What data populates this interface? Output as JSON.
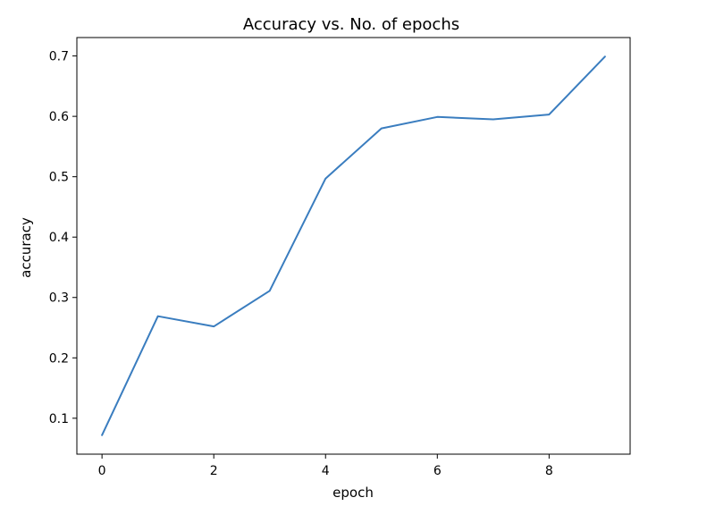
{
  "chart_data": {
    "type": "line",
    "title": "Accuracy vs. No. of epochs",
    "xlabel": "epoch",
    "ylabel": "accuracy",
    "x": [
      0,
      1,
      2,
      3,
      4,
      5,
      6,
      7,
      8,
      9
    ],
    "series": [
      {
        "values": [
          0.072,
          0.269,
          0.252,
          0.311,
          0.497,
          0.58,
          0.599,
          0.595,
          0.603,
          0.699
        ]
      }
    ],
    "xlim": [
      -0.45,
      9.45
    ],
    "ylim": [
      0.0405,
      0.7305
    ],
    "xticks": [
      0,
      2,
      4,
      6,
      8
    ],
    "xtick_labels": [
      "0",
      "2",
      "4",
      "6",
      "8"
    ],
    "yticks": [
      0.1,
      0.2,
      0.3,
      0.4,
      0.5,
      0.6,
      0.7
    ],
    "ytick_labels": [
      "0.1",
      "0.2",
      "0.3",
      "0.4",
      "0.5",
      "0.6",
      "0.7"
    ],
    "grid": false,
    "legend": false,
    "line_color": "#3a7dbf"
  }
}
